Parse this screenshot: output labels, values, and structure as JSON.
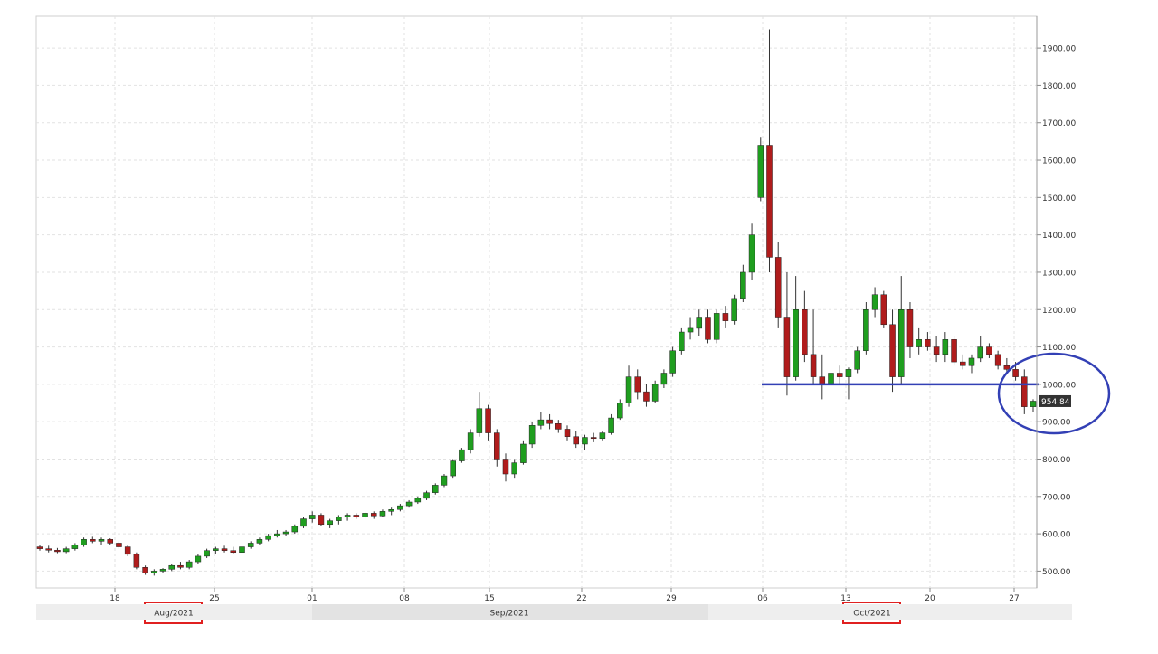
{
  "chart_data": {
    "type": "candlestick",
    "title": "",
    "xlabel": "",
    "ylabel": "",
    "ylim": [
      455,
      1985
    ],
    "grid": true,
    "y_ticks": [
      "500.00",
      "600.00",
      "700.00",
      "800.00",
      "900.00",
      "1000.00",
      "1100.00",
      "1200.00",
      "1300.00",
      "1400.00",
      "1500.00",
      "1600.00",
      "1700.00",
      "1800.00",
      "1900.00"
    ],
    "x_ticks": [
      "18",
      "25",
      "01",
      "08",
      "15",
      "22",
      "29",
      "06",
      "13",
      "20",
      "27"
    ],
    "period_labels": [
      "Aug/2021",
      "Sep/2021",
      "Oct/2021"
    ],
    "highlighted_periods": [
      "Aug/2021",
      "Oct/2021"
    ],
    "last_price_label": "954.84",
    "support_level": 1000,
    "colors": {
      "up": "#1f9e1f",
      "down": "#b01c1c",
      "support": "#3340b5",
      "highlight_box": "#e02020",
      "price_tag": "#333333"
    },
    "ohlc": [
      [
        565,
        570,
        555,
        560
      ],
      [
        560,
        568,
        550,
        556
      ],
      [
        556,
        562,
        548,
        552
      ],
      [
        552,
        565,
        548,
        560
      ],
      [
        560,
        575,
        555,
        570
      ],
      [
        570,
        590,
        565,
        585
      ],
      [
        585,
        592,
        575,
        580
      ],
      [
        580,
        590,
        570,
        585
      ],
      [
        585,
        588,
        570,
        575
      ],
      [
        575,
        580,
        560,
        565
      ],
      [
        565,
        570,
        540,
        545
      ],
      [
        545,
        550,
        505,
        510
      ],
      [
        510,
        515,
        490,
        495
      ],
      [
        495,
        505,
        488,
        500
      ],
      [
        500,
        508,
        495,
        505
      ],
      [
        505,
        520,
        500,
        515
      ],
      [
        515,
        525,
        505,
        510
      ],
      [
        510,
        530,
        505,
        525
      ],
      [
        525,
        545,
        520,
        540
      ],
      [
        540,
        560,
        535,
        555
      ],
      [
        555,
        565,
        545,
        560
      ],
      [
        560,
        568,
        550,
        555
      ],
      [
        555,
        565,
        545,
        550
      ],
      [
        550,
        570,
        545,
        565
      ],
      [
        565,
        580,
        560,
        575
      ],
      [
        575,
        590,
        570,
        585
      ],
      [
        585,
        600,
        580,
        595
      ],
      [
        595,
        610,
        590,
        600
      ],
      [
        600,
        610,
        595,
        605
      ],
      [
        605,
        625,
        600,
        620
      ],
      [
        620,
        645,
        615,
        640
      ],
      [
        640,
        660,
        630,
        650
      ],
      [
        650,
        655,
        620,
        625
      ],
      [
        625,
        640,
        615,
        635
      ],
      [
        635,
        650,
        625,
        645
      ],
      [
        645,
        655,
        635,
        650
      ],
      [
        650,
        655,
        640,
        645
      ],
      [
        645,
        660,
        640,
        655
      ],
      [
        655,
        660,
        640,
        648
      ],
      [
        648,
        665,
        645,
        660
      ],
      [
        660,
        670,
        650,
        665
      ],
      [
        665,
        680,
        660,
        675
      ],
      [
        675,
        690,
        670,
        685
      ],
      [
        685,
        700,
        680,
        695
      ],
      [
        695,
        715,
        690,
        710
      ],
      [
        710,
        735,
        705,
        730
      ],
      [
        730,
        760,
        725,
        755
      ],
      [
        755,
        800,
        750,
        795
      ],
      [
        795,
        830,
        790,
        825
      ],
      [
        825,
        880,
        815,
        870
      ],
      [
        870,
        980,
        860,
        935
      ],
      [
        935,
        945,
        850,
        870
      ],
      [
        870,
        880,
        780,
        800
      ],
      [
        800,
        815,
        740,
        760
      ],
      [
        760,
        800,
        750,
        790
      ],
      [
        790,
        850,
        785,
        840
      ],
      [
        840,
        900,
        830,
        890
      ],
      [
        890,
        925,
        880,
        905
      ],
      [
        905,
        920,
        880,
        895
      ],
      [
        895,
        905,
        870,
        880
      ],
      [
        880,
        890,
        850,
        860
      ],
      [
        860,
        875,
        830,
        840
      ],
      [
        840,
        865,
        825,
        858
      ],
      [
        858,
        870,
        845,
        855
      ],
      [
        855,
        875,
        850,
        870
      ],
      [
        870,
        920,
        865,
        910
      ],
      [
        910,
        960,
        905,
        950
      ],
      [
        950,
        1050,
        940,
        1020
      ],
      [
        1020,
        1040,
        960,
        980
      ],
      [
        980,
        1000,
        940,
        955
      ],
      [
        955,
        1010,
        950,
        1000
      ],
      [
        1000,
        1040,
        990,
        1030
      ],
      [
        1030,
        1100,
        1020,
        1090
      ],
      [
        1090,
        1150,
        1080,
        1140
      ],
      [
        1140,
        1180,
        1120,
        1150
      ],
      [
        1150,
        1200,
        1130,
        1180
      ],
      [
        1180,
        1200,
        1110,
        1120
      ],
      [
        1120,
        1200,
        1110,
        1190
      ],
      [
        1190,
        1210,
        1150,
        1170
      ],
      [
        1170,
        1240,
        1160,
        1230
      ],
      [
        1230,
        1320,
        1220,
        1300
      ],
      [
        1300,
        1430,
        1280,
        1400
      ],
      [
        1500,
        1660,
        1490,
        1640
      ],
      [
        1640,
        1950,
        1300,
        1340
      ],
      [
        1340,
        1380,
        1150,
        1180
      ],
      [
        1180,
        1300,
        970,
        1020
      ],
      [
        1020,
        1290,
        1010,
        1200
      ],
      [
        1200,
        1250,
        1060,
        1080
      ],
      [
        1080,
        1200,
        1000,
        1020
      ],
      [
        1020,
        1080,
        960,
        1000
      ],
      [
        1000,
        1040,
        985,
        1030
      ],
      [
        1030,
        1050,
        1000,
        1020
      ],
      [
        1020,
        1045,
        960,
        1040
      ],
      [
        1040,
        1100,
        1030,
        1090
      ],
      [
        1090,
        1220,
        1080,
        1200
      ],
      [
        1200,
        1260,
        1180,
        1240
      ],
      [
        1240,
        1250,
        1150,
        1160
      ],
      [
        1160,
        1200,
        980,
        1020
      ],
      [
        1020,
        1290,
        1000,
        1200
      ],
      [
        1200,
        1220,
        1070,
        1100
      ],
      [
        1100,
        1150,
        1080,
        1120
      ],
      [
        1120,
        1140,
        1090,
        1100
      ],
      [
        1100,
        1130,
        1060,
        1080
      ],
      [
        1080,
        1140,
        1060,
        1120
      ],
      [
        1120,
        1130,
        1050,
        1060
      ],
      [
        1060,
        1080,
        1040,
        1050
      ],
      [
        1050,
        1080,
        1030,
        1070
      ],
      [
        1070,
        1130,
        1060,
        1100
      ],
      [
        1100,
        1110,
        1070,
        1080
      ],
      [
        1080,
        1090,
        1040,
        1050
      ],
      [
        1050,
        1070,
        1030,
        1040
      ],
      [
        1040,
        1060,
        1010,
        1020
      ],
      [
        1020,
        1040,
        920,
        940
      ],
      [
        940,
        960,
        925,
        955
      ]
    ]
  }
}
